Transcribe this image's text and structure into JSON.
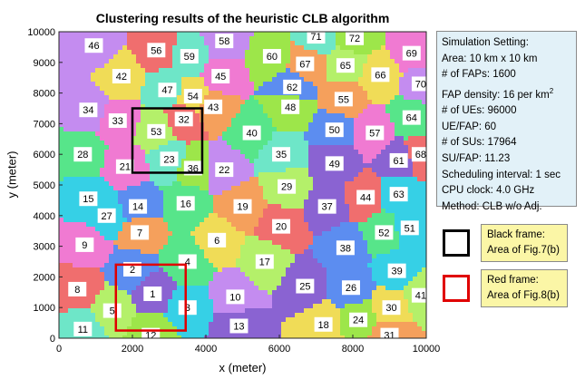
{
  "chart_data": {
    "type": "scatter",
    "title": "Clustering results of the heuristic CLB algorithm",
    "xlabel": "x (meter)",
    "ylabel": "y (meter)",
    "xlim": [
      0,
      10000
    ],
    "ylim": [
      0,
      10000
    ],
    "xticks": [
      "0",
      "2000",
      "4000",
      "6000",
      "8000",
      "10000"
    ],
    "yticks": [
      "0",
      "1000",
      "2000",
      "3000",
      "4000",
      "5000",
      "6000",
      "7000",
      "8000",
      "9000",
      "10000"
    ],
    "grid": false,
    "cluster_labels": [
      {
        "id": "1",
        "x": 2550,
        "y": 1450
      },
      {
        "id": "2",
        "x": 2000,
        "y": 2250
      },
      {
        "id": "3",
        "x": 3500,
        "y": 1000
      },
      {
        "id": "4",
        "x": 3500,
        "y": 2500
      },
      {
        "id": "5",
        "x": 1450,
        "y": 900
      },
      {
        "id": "6",
        "x": 4300,
        "y": 3200
      },
      {
        "id": "7",
        "x": 2200,
        "y": 3450
      },
      {
        "id": "8",
        "x": 500,
        "y": 1600
      },
      {
        "id": "9",
        "x": 700,
        "y": 3050
      },
      {
        "id": "10",
        "x": 4800,
        "y": 1350
      },
      {
        "id": "11",
        "x": 650,
        "y": 300
      },
      {
        "id": "12",
        "x": 2500,
        "y": 100
      },
      {
        "id": "13",
        "x": 4900,
        "y": 400
      },
      {
        "id": "14",
        "x": 2150,
        "y": 4300
      },
      {
        "id": "15",
        "x": 800,
        "y": 4550
      },
      {
        "id": "16",
        "x": 3450,
        "y": 4400
      },
      {
        "id": "17",
        "x": 5600,
        "y": 2500
      },
      {
        "id": "18",
        "x": 7200,
        "y": 450
      },
      {
        "id": "19",
        "x": 5000,
        "y": 4300
      },
      {
        "id": "20",
        "x": 6050,
        "y": 3650
      },
      {
        "id": "21",
        "x": 1800,
        "y": 5600
      },
      {
        "id": "22",
        "x": 4500,
        "y": 5500
      },
      {
        "id": "23",
        "x": 3000,
        "y": 5850
      },
      {
        "id": "24",
        "x": 8150,
        "y": 600
      },
      {
        "id": "25",
        "x": 6700,
        "y": 1700
      },
      {
        "id": "26",
        "x": 7950,
        "y": 1650
      },
      {
        "id": "27",
        "x": 1300,
        "y": 4000
      },
      {
        "id": "28",
        "x": 650,
        "y": 6000
      },
      {
        "id": "29",
        "x": 6200,
        "y": 4950
      },
      {
        "id": "30",
        "x": 9050,
        "y": 1000
      },
      {
        "id": "31",
        "x": 9000,
        "y": 100
      },
      {
        "id": "32",
        "x": 3400,
        "y": 7150
      },
      {
        "id": "33",
        "x": 1600,
        "y": 7100
      },
      {
        "id": "34",
        "x": 800,
        "y": 7450
      },
      {
        "id": "35",
        "x": 6050,
        "y": 6000
      },
      {
        "id": "36",
        "x": 3650,
        "y": 5550
      },
      {
        "id": "37",
        "x": 7300,
        "y": 4300
      },
      {
        "id": "38",
        "x": 7800,
        "y": 2950
      },
      {
        "id": "39",
        "x": 9200,
        "y": 2200
      },
      {
        "id": "40",
        "x": 5250,
        "y": 6700
      },
      {
        "id": "41",
        "x": 9850,
        "y": 1400
      },
      {
        "id": "42",
        "x": 1700,
        "y": 8550
      },
      {
        "id": "43",
        "x": 4200,
        "y": 7550
      },
      {
        "id": "44",
        "x": 8350,
        "y": 4600
      },
      {
        "id": "45",
        "x": 4400,
        "y": 8550
      },
      {
        "id": "46",
        "x": 950,
        "y": 9550
      },
      {
        "id": "47",
        "x": 2950,
        "y": 8100
      },
      {
        "id": "48",
        "x": 6300,
        "y": 7550
      },
      {
        "id": "49",
        "x": 7500,
        "y": 5700
      },
      {
        "id": "50",
        "x": 7500,
        "y": 6800
      },
      {
        "id": "51",
        "x": 9550,
        "y": 3600
      },
      {
        "id": "52",
        "x": 8850,
        "y": 3450
      },
      {
        "id": "53",
        "x": 2650,
        "y": 6750
      },
      {
        "id": "54",
        "x": 3650,
        "y": 7900
      },
      {
        "id": "55",
        "x": 7750,
        "y": 7800
      },
      {
        "id": "56",
        "x": 2650,
        "y": 9400
      },
      {
        "id": "57",
        "x": 8600,
        "y": 6700
      },
      {
        "id": "58",
        "x": 4500,
        "y": 9700
      },
      {
        "id": "59",
        "x": 3550,
        "y": 9200
      },
      {
        "id": "60",
        "x": 5800,
        "y": 9200
      },
      {
        "id": "61",
        "x": 9250,
        "y": 5800
      },
      {
        "id": "62",
        "x": 6350,
        "y": 8200
      },
      {
        "id": "63",
        "x": 9250,
        "y": 4700
      },
      {
        "id": "64",
        "x": 9600,
        "y": 7200
      },
      {
        "id": "65",
        "x": 7800,
        "y": 8900
      },
      {
        "id": "66",
        "x": 8750,
        "y": 8600
      },
      {
        "id": "67",
        "x": 6700,
        "y": 8950
      },
      {
        "id": "68",
        "x": 9850,
        "y": 6000
      },
      {
        "id": "69",
        "x": 9600,
        "y": 9300
      },
      {
        "id": "70",
        "x": 9850,
        "y": 8300
      },
      {
        "id": "71",
        "x": 7000,
        "y": 9850
      },
      {
        "id": "72",
        "x": 8050,
        "y": 9800
      }
    ],
    "frames": [
      {
        "name": "black",
        "color": "#000000",
        "x": [
          2000,
          3900
        ],
        "y": [
          5400,
          7500
        ]
      },
      {
        "name": "red",
        "color": "#e00000",
        "x": [
          1550,
          3450
        ],
        "y": [
          250,
          2400
        ]
      }
    ],
    "legend_placement": "right"
  },
  "info_box": {
    "lines": [
      "Simulation Setting:",
      "Area: 10 km x 10 km",
      "# of FAPs: 1600",
      "FAP density: 16 per km",
      "# of UEs: 96000",
      "UE/FAP: 60",
      "# of SUs: 17964",
      "SU/FAP: 11.23",
      "Scheduling interval: 1 sec",
      "CPU clock: 4.0 GHz",
      "Method: CLB  w/o Adj."
    ],
    "superscript": "2"
  },
  "legend": [
    {
      "line1": "Black frame:",
      "line2": "Area of Fig.7(b)",
      "color": "#000000"
    },
    {
      "line1": "Red frame:",
      "line2": "Area of Fig.8(b)",
      "color": "#e00000"
    }
  ],
  "palette": [
    "#8a63d2",
    "#5c8df0",
    "#36d0e6",
    "#57e58a",
    "#b4f06a",
    "#f0dc57",
    "#f5a05c",
    "#f06e6e",
    "#f07ad2",
    "#c48cf0",
    "#6ee6c8",
    "#9de64a"
  ]
}
